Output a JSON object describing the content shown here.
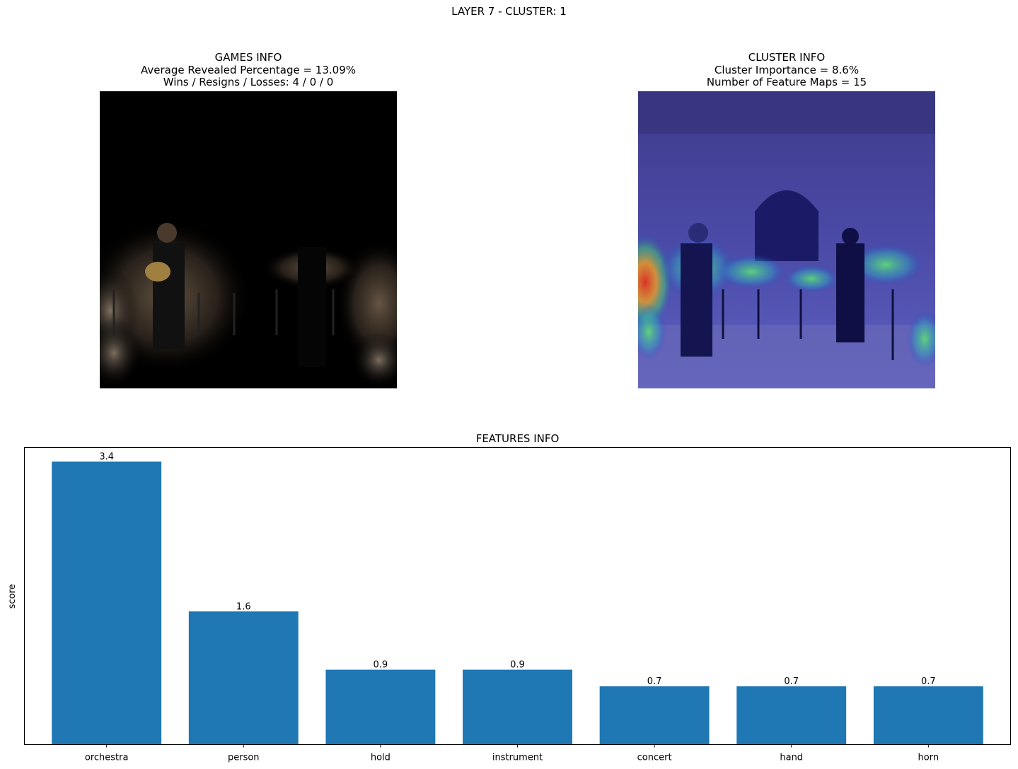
{
  "suptitle": "LAYER 7 - CLUSTER: 1",
  "games_panel": {
    "title": "GAMES INFO",
    "line1": "Average Revealed Percentage = 13.09%",
    "line2": "Wins / Resigns / Losses: 4 / 0 / 0"
  },
  "cluster_panel": {
    "title": "CLUSTER INFO",
    "line1": "Cluster Importance = 8.6%",
    "line2": "Number of Feature Maps = 15"
  },
  "chart_data": {
    "type": "bar",
    "title": "FEATURES INFO",
    "xlabel": "",
    "ylabel": "score",
    "categories": [
      "orchestra",
      "person",
      "hold",
      "instrument",
      "concert",
      "hand",
      "horn"
    ],
    "values": [
      3.4,
      1.6,
      0.9,
      0.9,
      0.7,
      0.7,
      0.7
    ],
    "value_labels": [
      "3.4",
      "1.6",
      "0.9",
      "0.9",
      "0.7",
      "0.7",
      "0.7"
    ],
    "ylim": [
      0,
      3.57
    ],
    "color": "#1f77b4",
    "grid": false
  }
}
